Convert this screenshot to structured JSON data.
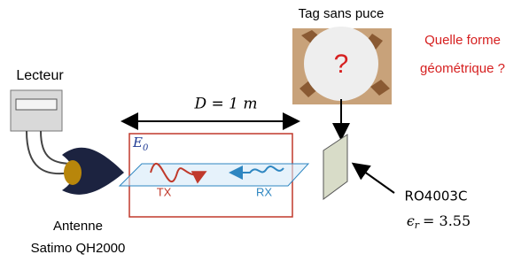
{
  "tag_title": "Tag sans puce",
  "tag_mark": "?",
  "question": [
    "Quelle forme",
    "géométrique ?"
  ],
  "reader": "Lecteur",
  "distance": "D = 1 m",
  "field": {
    "symbol": "E",
    "subscript": "0"
  },
  "tx": "TX",
  "rx": "RX",
  "antenna": [
    "Antenne",
    "Satimo QH2000"
  ],
  "substrate": {
    "name": "RO4003C",
    "symbol": "ϵ",
    "subscript": "r",
    "value": "= 3.55"
  }
}
